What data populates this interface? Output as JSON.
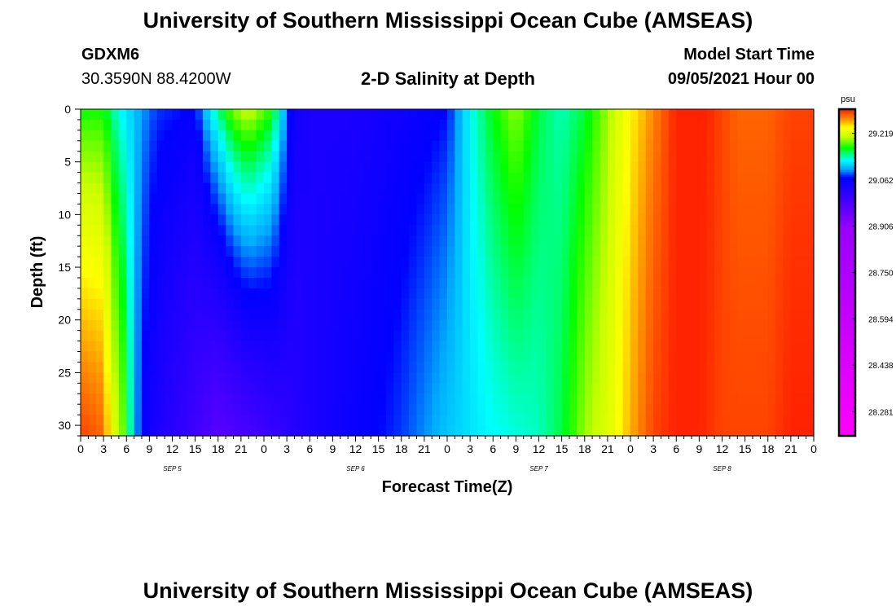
{
  "header": {
    "title_top": "University of Southern Mississippi Ocean Cube (AMSEAS)",
    "station_id": "GDXM6",
    "coords": "30.3590N  88.4200W",
    "subtitle": "2-D Salinity at Depth",
    "model_start_label": "Model Start Time",
    "model_start_value": "09/05/2021 Hour 00",
    "title_bottom": "University of Southern Mississippi Ocean Cube (AMSEAS)"
  },
  "chart_data": {
    "type": "heatmap",
    "title": "2-D Salinity at Depth",
    "xlabel": "Forecast Time(Z)",
    "ylabel": "Depth (ft)",
    "x_tick_labels": [
      "0",
      "3",
      "6",
      "9",
      "12",
      "15",
      "18",
      "21",
      "0",
      "3",
      "6",
      "9",
      "12",
      "15",
      "18",
      "21",
      "0",
      "3",
      "6",
      "9",
      "12",
      "15",
      "18",
      "21",
      "0",
      "3",
      "6",
      "9",
      "12",
      "15",
      "18",
      "21",
      "0"
    ],
    "x_range_hours": [
      0,
      96
    ],
    "day_labels": [
      {
        "hour": 12,
        "label": "SEP 5"
      },
      {
        "hour": 36,
        "label": "SEP 6"
      },
      {
        "hour": 60,
        "label": "SEP 7"
      },
      {
        "hour": 84,
        "label": "SEP 8"
      }
    ],
    "y_tick_labels": [
      "0",
      "5",
      "10",
      "15",
      "20",
      "25",
      "30"
    ],
    "y_range_ft": [
      0,
      31
    ],
    "y_inverted": true,
    "colorbar": {
      "unit": "psu",
      "ticks": [
        "29.219",
        "29.062",
        "28.906",
        "28.750",
        "28.594",
        "28.438",
        "28.281"
      ],
      "tick_values": [
        29.219,
        29.062,
        28.906,
        28.75,
        28.594,
        28.438,
        28.281
      ],
      "range": [
        28.2,
        29.3
      ],
      "colors": [
        {
          "v": 28.2,
          "c": "#ff00ff"
        },
        {
          "v": 28.9,
          "c": "#9900ff"
        },
        {
          "v": 29.0,
          "c": "#3d00ff"
        },
        {
          "v": 29.07,
          "c": "#0000ff"
        },
        {
          "v": 29.1,
          "c": "#00aaff"
        },
        {
          "v": 29.13,
          "c": "#00ffff"
        },
        {
          "v": 29.17,
          "c": "#00ff00"
        },
        {
          "v": 29.21,
          "c": "#ccff00"
        },
        {
          "v": 29.24,
          "c": "#ffff00"
        },
        {
          "v": 29.27,
          "c": "#ff8800"
        },
        {
          "v": 29.3,
          "c": "#ff2200"
        }
      ]
    },
    "surface_profile": {
      "hours": [
        0,
        3,
        5,
        7,
        10,
        15,
        17,
        20,
        22,
        25,
        28,
        31,
        33,
        36,
        40,
        45,
        48,
        51,
        54,
        57,
        60,
        63,
        66,
        69,
        72,
        75,
        78,
        82,
        86,
        90,
        93,
        94,
        96
      ],
      "values": [
        29.17,
        29.17,
        29.13,
        29.11,
        29.08,
        29.07,
        29.13,
        29.2,
        29.22,
        29.18,
        29.05,
        29.04,
        29.04,
        29.04,
        29.05,
        29.06,
        29.07,
        29.13,
        29.17,
        29.2,
        29.16,
        29.14,
        29.16,
        29.2,
        29.24,
        29.27,
        29.3,
        29.3,
        29.28,
        29.28,
        29.29,
        29.29,
        29.29
      ]
    },
    "bottom_profile": {
      "hours": [
        0,
        3,
        4,
        6,
        7,
        8,
        10,
        14,
        18,
        24,
        30,
        36,
        42,
        48,
        54,
        60,
        63,
        66,
        69,
        72,
        75,
        78,
        81,
        84,
        87,
        90,
        93,
        96
      ],
      "values": [
        29.29,
        29.28,
        29.23,
        29.18,
        29.11,
        29.07,
        29.04,
        29.01,
        28.97,
        29.0,
        29.04,
        29.06,
        29.08,
        29.11,
        29.13,
        29.14,
        29.16,
        29.2,
        29.22,
        29.26,
        29.29,
        29.3,
        29.3,
        29.29,
        29.29,
        29.29,
        29.3,
        29.3
      ]
    }
  }
}
